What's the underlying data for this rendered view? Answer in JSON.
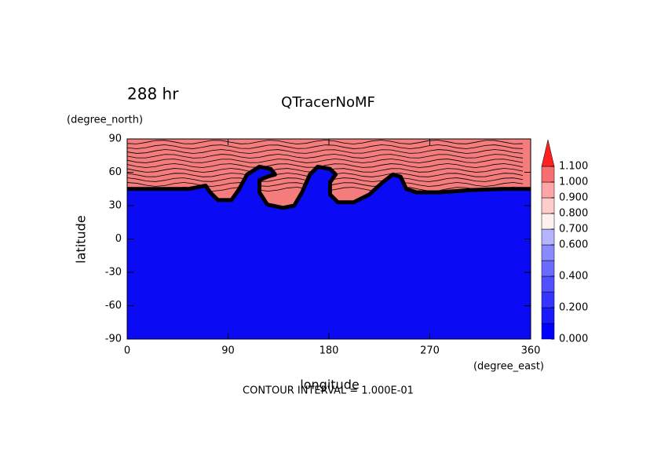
{
  "chart_data": {
    "type": "contour",
    "title": "QTracerNoMF",
    "time_label": "288 hr",
    "x_label": "longitude",
    "y_label": "latitude",
    "x_unit": "(degree_east)",
    "y_unit": "(degree_north)",
    "note": "CONTOUR INTERVAL = 1.000E-01",
    "xlim": [
      0,
      360
    ],
    "ylim": [
      -90,
      90
    ],
    "xticks": [
      0,
      90,
      180,
      270,
      360
    ],
    "yticks": [
      -90,
      -60,
      -30,
      0,
      30,
      60,
      90
    ],
    "low_color": "#0a0af5",
    "high_color": "#f47c7c",
    "boundary": {
      "x": [
        0,
        27,
        55,
        70,
        74,
        81,
        93,
        100,
        107,
        118,
        128,
        132,
        125,
        118,
        118,
        125,
        139,
        149,
        156,
        163,
        170,
        181,
        186,
        181,
        181,
        188,
        202,
        216,
        228,
        237,
        244,
        249,
        258,
        279,
        307,
        335,
        360
      ],
      "y": [
        45,
        45,
        45,
        48,
        42,
        35,
        35,
        45,
        58,
        65,
        63,
        58,
        56,
        53,
        42,
        31,
        28,
        30,
        42,
        58,
        65,
        63,
        58,
        51,
        40,
        33,
        33,
        40,
        51,
        58,
        56,
        45,
        42,
        42,
        44,
        45,
        45
      ]
    },
    "colorbar": {
      "levels": [
        0,
        0.1,
        0.2,
        0.3,
        0.4,
        0.5,
        0.6,
        0.7,
        0.8,
        0.9,
        1.0,
        1.1
      ],
      "colors": [
        "#0000ff",
        "#1a1aff",
        "#3535ff",
        "#5050ff",
        "#6a6aff",
        "#8a8aff",
        "#b4b4ff",
        "#fff0f0",
        "#ffcccc",
        "#ffa5a5",
        "#f77070"
      ],
      "over_color": "#ff2020",
      "ticks": [
        {
          "value": 0,
          "label": "0.000"
        },
        {
          "value": 0.2,
          "label": "0.200"
        },
        {
          "value": 0.4,
          "label": "0.400"
        },
        {
          "value": 0.6,
          "label": "0.600"
        },
        {
          "value": 0.7,
          "label": "0.700"
        },
        {
          "value": 0.8,
          "label": "0.800"
        },
        {
          "value": 0.9,
          "label": "0.900"
        },
        {
          "value": 1.0,
          "label": "1.000"
        },
        {
          "value": 1.1,
          "label": "1.100"
        }
      ]
    }
  }
}
